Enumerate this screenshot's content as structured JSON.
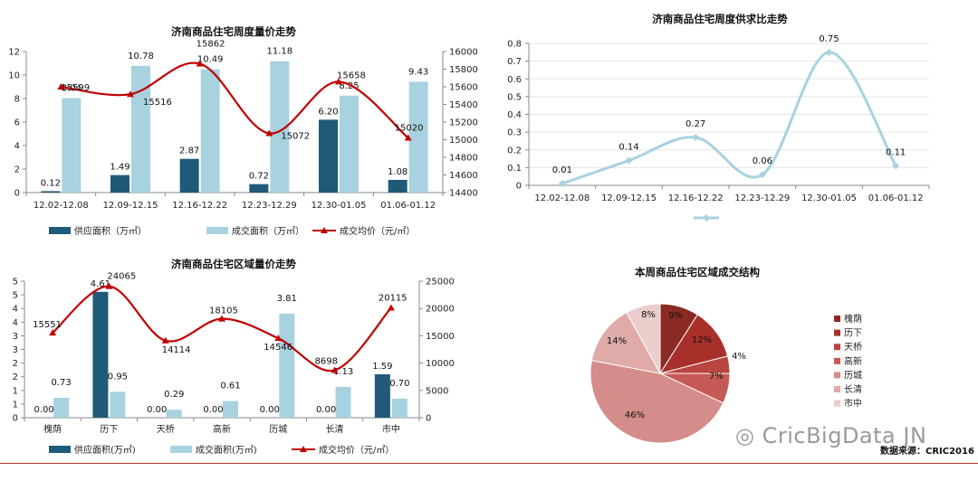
{
  "watermark": "CricBigData JN",
  "source": "数据来源：CRIC2016",
  "charts": {
    "weekly": {
      "chart_data": {
        "type": "bar",
        "title": "济南商品住宅周度量价走势",
        "categories": [
          "12.02-12.08",
          "12.09-12.15",
          "12.16-12.22",
          "12.23-12.29",
          "12.30-01.05",
          "01.06-01.12"
        ],
        "series": [
          {
            "name": "供应面积（万㎡）",
            "type": "bar",
            "axis": "left",
            "color": "#1f5a78",
            "values": [
              0.12,
              1.49,
              2.87,
              0.72,
              6.2,
              1.08
            ]
          },
          {
            "name": "成交面积（万㎡）",
            "type": "bar",
            "axis": "left",
            "color": "#a8d2df",
            "values": [
              8.04,
              10.78,
              10.49,
              11.18,
              8.25,
              9.43
            ]
          },
          {
            "name": "成交均价（元/㎡）",
            "type": "line",
            "axis": "right",
            "color": "#c00000",
            "values": [
              15599,
              15516,
              15862,
              15072,
              15658,
              15020
            ]
          }
        ],
        "ylim": [
          0,
          12
        ],
        "yticks": [
          0,
          2,
          4,
          6,
          8,
          10,
          12
        ],
        "y2lim": [
          14400,
          16000
        ],
        "y2ticks": [
          14400,
          14600,
          14800,
          15000,
          15200,
          15400,
          15600,
          15800,
          16000
        ],
        "legend": "bottom"
      }
    },
    "ratio": {
      "chart_data": {
        "type": "line",
        "title": "济南商品住宅周度供求比走势",
        "categories": [
          "12.02-12.08",
          "12.09-12.15",
          "12.16-12.22",
          "12.23-12.29",
          "12.30-01.05",
          "01.06-01.12"
        ],
        "series": [
          {
            "color": "#a8d2df",
            "values": [
              0.01,
              0.14,
              0.27,
              0.06,
              0.75,
              0.11
            ]
          }
        ],
        "ylim": [
          0,
          0.8
        ],
        "yticks": [
          0,
          0.1,
          0.2,
          0.3,
          0.4,
          0.5,
          0.6,
          0.7,
          0.8
        ],
        "legend": "bottom"
      }
    },
    "district": {
      "chart_data": {
        "type": "bar",
        "title": "济南商品住宅区域量价走势",
        "categories": [
          "槐荫",
          "历下",
          "天桥",
          "高新",
          "历城",
          "长清",
          "市中"
        ],
        "series": [
          {
            "name": "供应面积(万㎡)",
            "type": "bar",
            "axis": "left",
            "color": "#1f5a78",
            "values": [
              0.0,
              4.61,
              0.0,
              0.0,
              0.0,
              0.0,
              1.59
            ]
          },
          {
            "name": "成交面积(万㎡)",
            "type": "bar",
            "axis": "left",
            "color": "#a8d2df",
            "values": [
              0.73,
              0.95,
              0.29,
              0.61,
              3.81,
              1.13,
              0.7
            ]
          },
          {
            "name": "成交均价（元/㎡）",
            "type": "line",
            "axis": "right",
            "color": "#c00000",
            "values": [
              15551,
              24065,
              14114,
              18105,
              14546,
              8698,
              20115
            ]
          }
        ],
        "ylim": [
          0,
          5
        ],
        "yticks": [
          0,
          0.5,
          1,
          1.5,
          2,
          2.5,
          3,
          3.5,
          4,
          4.5,
          5
        ],
        "ytick_labels": [
          "0",
          "1",
          "1",
          "2",
          "2",
          "3",
          "3",
          "4",
          "4",
          "5",
          "5"
        ],
        "y2lim": [
          0,
          25000
        ],
        "y2ticks": [
          0,
          5000,
          10000,
          15000,
          20000,
          25000
        ],
        "legend": "bottom"
      }
    },
    "structure": {
      "chart_data": {
        "type": "pie",
        "title": "本周商品住宅区域成交结构",
        "slices": [
          {
            "label": "槐荫",
            "value": 9,
            "text": "9%",
            "color": "#8b2a25"
          },
          {
            "label": "历下",
            "value": 12,
            "text": "12%",
            "color": "#a8302b"
          },
          {
            "label": "天桥",
            "value": 4,
            "text": "4%",
            "color": "#b94541"
          },
          {
            "label": "高新",
            "value": 7,
            "text": "7%",
            "color": "#c65a56"
          },
          {
            "label": "历城",
            "value": 46,
            "text": "46%",
            "color": "#d48d8a"
          },
          {
            "label": "长清",
            "value": 14,
            "text": "14%",
            "color": "#dfaaa7"
          },
          {
            "label": "市中",
            "value": 8,
            "text": "8%",
            "color": "#ebcdcb"
          }
        ],
        "legend": "right"
      }
    }
  }
}
